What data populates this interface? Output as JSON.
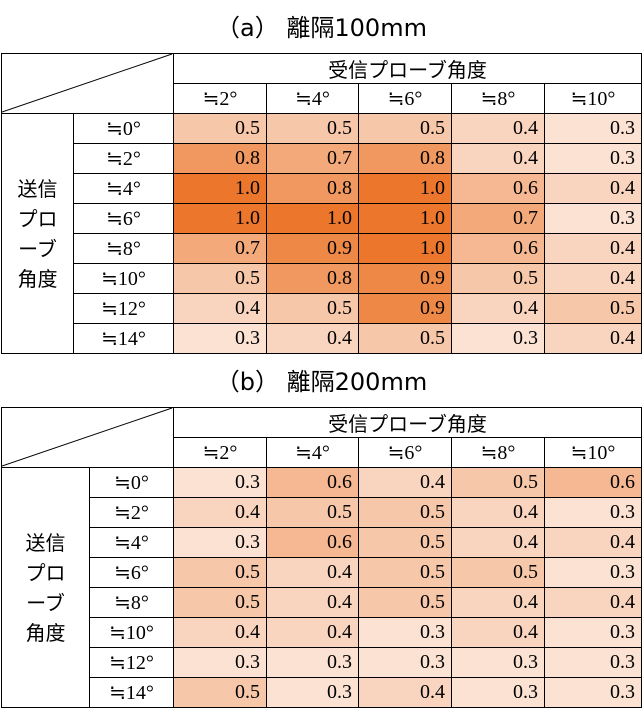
{
  "tables": [
    {
      "title": "（a） 離隔100mm",
      "column_header": "受信プローブ角度",
      "columns": [
        "≒2°",
        "≒4°",
        "≒6°",
        "≒8°",
        "≒10°"
      ],
      "row_header": "送信プローブ角度",
      "rows": [
        {
          "label": "≒0°",
          "cells": [
            "0.5",
            "0.5",
            "0.5",
            "0.4",
            "0.3"
          ]
        },
        {
          "label": "≒2°",
          "cells": [
            "0.8",
            "0.7",
            "0.8",
            "0.4",
            "0.3"
          ]
        },
        {
          "label": "≒4°",
          "cells": [
            "1.0",
            "0.8",
            "1.0",
            "0.6",
            "0.4"
          ]
        },
        {
          "label": "≒6°",
          "cells": [
            "1.0",
            "1.0",
            "1.0",
            "0.7",
            "0.3"
          ]
        },
        {
          "label": "≒8°",
          "cells": [
            "0.7",
            "0.9",
            "1.0",
            "0.6",
            "0.4"
          ]
        },
        {
          "label": "≒10°",
          "cells": [
            "0.5",
            "0.8",
            "0.9",
            "0.5",
            "0.4"
          ]
        },
        {
          "label": "≒12°",
          "cells": [
            "0.4",
            "0.5",
            "0.9",
            "0.4",
            "0.5"
          ]
        },
        {
          "label": "≒14°",
          "cells": [
            "0.3",
            "0.4",
            "0.5",
            "0.3",
            "0.4"
          ]
        }
      ]
    },
    {
      "title": "（b） 離隔200mm",
      "column_header": "受信プローブ角度",
      "columns": [
        "≒2°",
        "≒4°",
        "≒6°",
        "≒8°",
        "≒10°"
      ],
      "row_header": "送信プローブ角度",
      "rows": [
        {
          "label": "≒0°",
          "cells": [
            "0.3",
            "0.6",
            "0.4",
            "0.5",
            "0.6"
          ]
        },
        {
          "label": "≒2°",
          "cells": [
            "0.4",
            "0.5",
            "0.5",
            "0.4",
            "0.3"
          ]
        },
        {
          "label": "≒4°",
          "cells": [
            "0.3",
            "0.6",
            "0.5",
            "0.4",
            "0.4"
          ]
        },
        {
          "label": "≒6°",
          "cells": [
            "0.5",
            "0.4",
            "0.5",
            "0.5",
            "0.3"
          ]
        },
        {
          "label": "≒8°",
          "cells": [
            "0.5",
            "0.4",
            "0.5",
            "0.4",
            "0.4"
          ]
        },
        {
          "label": "≒10°",
          "cells": [
            "0.4",
            "0.4",
            "0.3",
            "0.4",
            "0.3"
          ]
        },
        {
          "label": "≒12°",
          "cells": [
            "0.3",
            "0.3",
            "0.3",
            "0.3",
            "0.3"
          ]
        },
        {
          "label": "≒14°",
          "cells": [
            "0.5",
            "0.3",
            "0.4",
            "0.3",
            "0.3"
          ]
        }
      ]
    }
  ]
}
